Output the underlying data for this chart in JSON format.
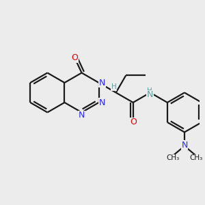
{
  "background_color": "#ececec",
  "bond_color": "#1a1a1a",
  "nitrogen_color": "#2828ff",
  "oxygen_color": "#e60000",
  "nh_color": "#5a9ea0",
  "line_width": 1.6,
  "figsize": [
    3.0,
    3.0
  ],
  "dpi": 100,
  "xlim": [
    0,
    10
  ],
  "ylim": [
    0,
    10
  ]
}
